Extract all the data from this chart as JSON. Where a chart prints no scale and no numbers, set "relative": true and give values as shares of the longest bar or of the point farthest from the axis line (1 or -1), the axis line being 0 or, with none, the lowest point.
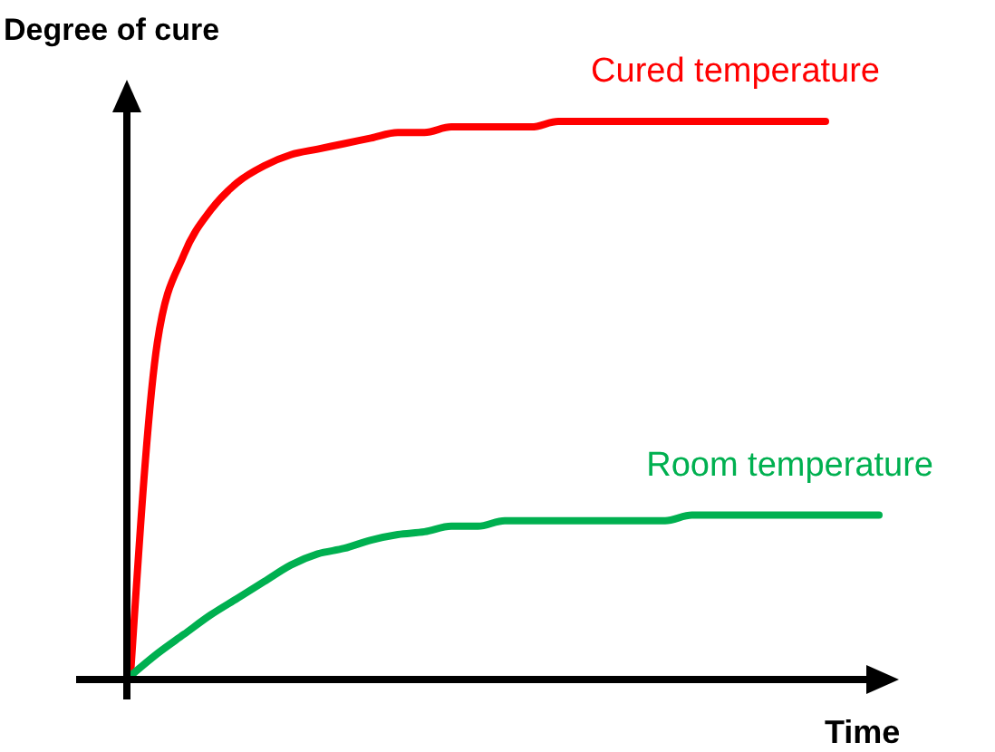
{
  "chart_data": {
    "type": "line",
    "relative": true,
    "xlabel": "Time",
    "ylabel": "Degree of cure",
    "grid": false,
    "marker": "none",
    "line_style": "solid",
    "categories": [
      null,
      null,
      null,
      null,
      null,
      null,
      null,
      null,
      null,
      null,
      null,
      null,
      null,
      null,
      null,
      null,
      null,
      null,
      null,
      null,
      null,
      null,
      null,
      null,
      null,
      null,
      null,
      null,
      null
    ],
    "series": [
      {
        "name": "Cured temperature",
        "color": "#ff0000",
        "values": [
          0,
          0.6,
          0.76,
          0.84,
          0.89,
          0.92,
          0.94,
          0.95,
          0.96,
          0.97,
          0.98,
          0.98,
          0.99,
          0.99,
          0.99,
          0.99,
          1,
          1,
          1,
          1,
          1,
          1,
          1,
          1,
          1,
          1,
          1,
          null,
          null
        ]
      },
      {
        "name": "Room temperature",
        "color": "#00b050",
        "values": [
          0,
          0.04,
          0.075,
          0.11,
          0.14,
          0.17,
          0.2,
          0.22,
          0.23,
          0.245,
          0.255,
          0.26,
          0.27,
          0.27,
          0.28,
          0.28,
          0.28,
          0.28,
          0.28,
          0.28,
          0.28,
          0.29,
          0.29,
          0.29,
          0.29,
          0.29,
          0.29,
          0.29,
          0.29
        ]
      }
    ]
  }
}
